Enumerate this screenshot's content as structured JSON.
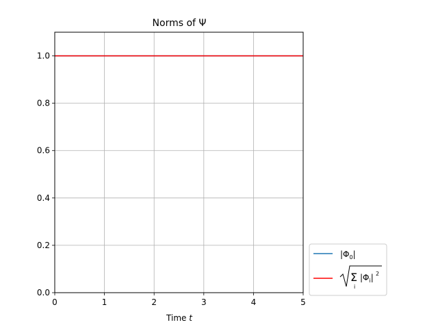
{
  "chart_data": {
    "type": "line",
    "title": "Norms of Ψ",
    "xlabel": "Time t",
    "ylabel": "",
    "xlim": [
      0,
      5
    ],
    "ylim": [
      0,
      1.1
    ],
    "x_ticks": [
      0,
      1,
      2,
      3,
      4,
      5
    ],
    "x_tick_labels": [
      "0",
      "1",
      "2",
      "3",
      "4",
      "5"
    ],
    "y_ticks": [
      0,
      0.2,
      0.4,
      0.6,
      0.8,
      1.0
    ],
    "y_tick_labels": [
      "0.0",
      "0.2",
      "0.4",
      "0.6",
      "0.8",
      "1.0"
    ],
    "grid": true,
    "legend_position": "lower-right outside plot",
    "series": [
      {
        "name": "|Φ0|",
        "color": "#1f77b4",
        "x": [
          0,
          5
        ],
        "y": [
          1.0,
          1.0
        ]
      },
      {
        "name": "sqrt(Σ_i |Φ_i|^2)",
        "color": "#ff0000",
        "x": [
          0,
          5
        ],
        "y": [
          1.0,
          1.0
        ]
      }
    ]
  }
}
